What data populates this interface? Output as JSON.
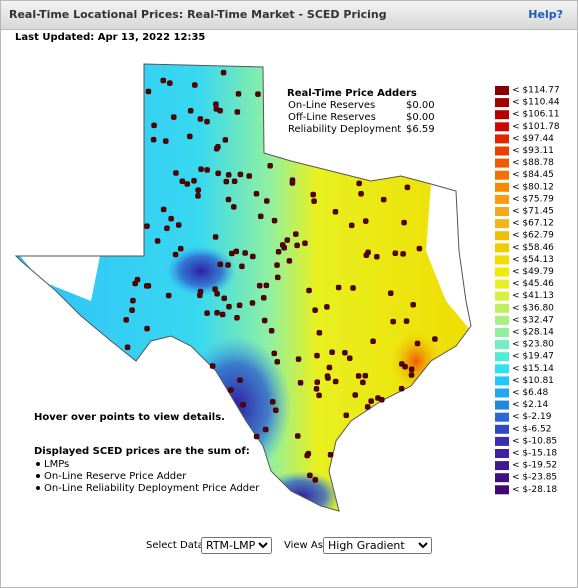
{
  "header": {
    "title": "Real-Time Locational Prices: Real-Time Market - SCED Pricing",
    "help": "Help?"
  },
  "last_updated": "Last Updated: Apr 13, 2022 12:35",
  "price_adders": {
    "title": "Real-Time Price Adders",
    "rows": [
      [
        "On-Line Reserves",
        "$0.00"
      ],
      [
        "Off-Line Reserves",
        "$0.00"
      ],
      [
        "Reliability Deployment",
        "$6.59"
      ]
    ]
  },
  "legend": [
    {
      "label": "< $114.77",
      "color": "#8b0000"
    },
    {
      "label": "< $110.44",
      "color": "#a00000"
    },
    {
      "label": "< $106.11",
      "color": "#b40000"
    },
    {
      "label": "< $101.78",
      "color": "#c80a00"
    },
    {
      "label": "< $97.44",
      "color": "#dc2800"
    },
    {
      "label": "< $93.11",
      "color": "#e84000"
    },
    {
      "label": "< $88.78",
      "color": "#f05a00"
    },
    {
      "label": "< $84.45",
      "color": "#f57000"
    },
    {
      "label": "< $80.12",
      "color": "#f88a00"
    },
    {
      "label": "< $75.79",
      "color": "#fa9a10"
    },
    {
      "label": "< $71.45",
      "color": "#f8a820"
    },
    {
      "label": "< $67.12",
      "color": "#f5b41a"
    },
    {
      "label": "< $62.79",
      "color": "#f0c000"
    },
    {
      "label": "< $58.46",
      "color": "#f0cc00"
    },
    {
      "label": "< $54.13",
      "color": "#f0dc00"
    },
    {
      "label": "< $49.79",
      "color": "#f0ec00"
    },
    {
      "label": "< $45.46",
      "color": "#e8f020"
    },
    {
      "label": "< $41.13",
      "color": "#d8f040"
    },
    {
      "label": "< $36.80",
      "color": "#c0f060"
    },
    {
      "label": "< $32.47",
      "color": "#a8f080"
    },
    {
      "label": "< $28.14",
      "color": "#90f0a0"
    },
    {
      "label": "< $23.80",
      "color": "#70f0c0"
    },
    {
      "label": "< $19.47",
      "color": "#50ecd8"
    },
    {
      "label": "< $15.14",
      "color": "#30e0f0"
    },
    {
      "label": "< $10.81",
      "color": "#20c8f8"
    },
    {
      "label": "< $6.48",
      "color": "#20a8f0"
    },
    {
      "label": "< $2.14",
      "color": "#2088e0"
    },
    {
      "label": "< $-2.19",
      "color": "#2868d0"
    },
    {
      "label": "< $-6.52",
      "color": "#3048c0"
    },
    {
      "label": "< $-10.85",
      "color": "#3830b0"
    },
    {
      "label": "< $-15.18",
      "color": "#4020a0"
    },
    {
      "label": "< $-19.52",
      "color": "#401890"
    },
    {
      "label": "< $-23.85",
      "color": "#401080"
    },
    {
      "label": "< $-28.18",
      "color": "#400870"
    }
  ],
  "hover_note": "Hover over points to view details.",
  "sum_note": {
    "title": "Displayed SCED prices are the sum of:",
    "items": [
      "LMPs",
      "On-Line Reserve Price Adder",
      "On-Line Reliability Deployment Price Adder"
    ]
  },
  "controls": {
    "select_data_label": "Select Data",
    "select_data_value": "RTM-LMP",
    "view_as_label": "View As",
    "view_as_value": "High Gradient"
  }
}
